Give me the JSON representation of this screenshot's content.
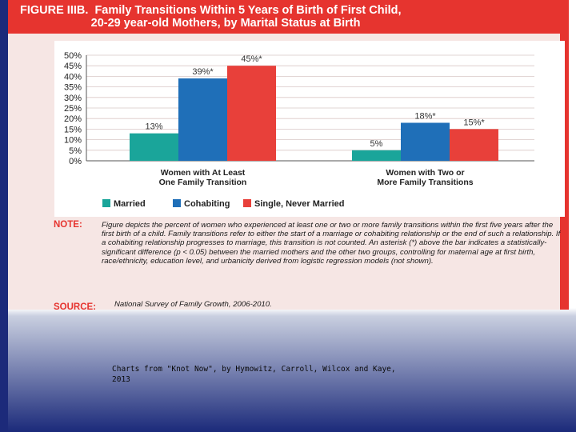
{
  "figure": {
    "title_line1": "FIGURE IIIB.  Family Transitions Within 5 Years of Birth of First Child,",
    "title_line2": "                      20-29 year-old Mothers, by Marital Status at Birth",
    "note_label": "NOTE:",
    "note_text": "Figure depicts the percent of women who experienced at least one or two or more family transitions within the first five years after the first birth of a child. Family transitions refer to either the start of a marriage or cohabiting relationship or the end of such a relationship. If a cohabiting relationship progresses to marriage, this transition is not counted. An asterisk (*) above the bar indicates a statistically-significant difference (p < 0.05) between the married mothers and the other two groups, controlling for maternal age at first birth, race/ethnicity, education level, and urbanicity derived from logistic regression models (not shown).",
    "source_label": "SOURCE:",
    "source_text": "National Survey of Family Growth, 2006-2010.",
    "colors": {
      "header": "#e6342f",
      "married": "#1aa59a",
      "cohabiting": "#1f6fb8",
      "single": "#e8403a"
    }
  },
  "slide_caption": "Charts from \"Knot Now\", by Hymowitz, Carroll, Wilcox and Kaye, 2013",
  "chart_data": {
    "type": "bar",
    "categories": [
      "Women with At Least One Family Transition",
      "Women with Two or More Family Transitions"
    ],
    "category_lines": [
      [
        "Women with At Least",
        "One Family Transition"
      ],
      [
        "Women with Two or",
        "More Family Transitions"
      ]
    ],
    "series": [
      {
        "name": "Married",
        "values": [
          13,
          5
        ],
        "labels": [
          "13%",
          "5%"
        ],
        "color": "#1aa59a"
      },
      {
        "name": "Cohabiting",
        "values": [
          39,
          18
        ],
        "labels": [
          "39%*",
          "18%*"
        ],
        "color": "#1f6fb8"
      },
      {
        "name": "Single, Never Married",
        "values": [
          45,
          15
        ],
        "labels": [
          "45%*",
          "15%*"
        ],
        "color": "#e8403a"
      }
    ],
    "ylim": [
      0,
      50
    ],
    "yticks": [
      "0%",
      "5%",
      "10%",
      "15%",
      "20%",
      "25%",
      "30%",
      "35%",
      "40%",
      "45%",
      "50%"
    ],
    "grid": true,
    "legend_position": "bottom"
  }
}
